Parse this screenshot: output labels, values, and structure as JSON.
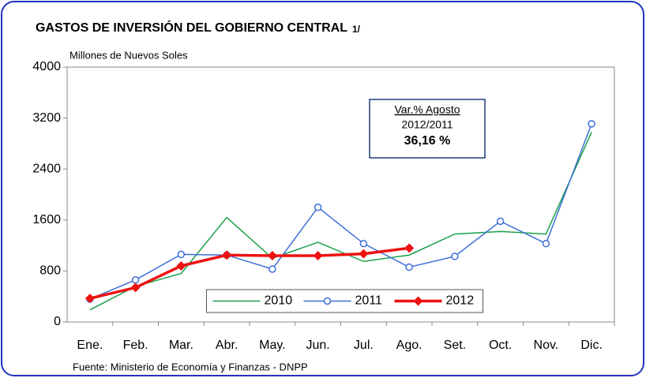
{
  "chart_data": {
    "type": "line",
    "title": "GASTOS DE INVERSIÓN DEL GOBIERNO CENTRAL",
    "title_note": "1/",
    "y_label": "Millones de Nuevos Soles",
    "source": "Fuente: Ministerio de Economía y Finanzas - DNPP",
    "categories": [
      "Ene.",
      "Feb.",
      "Mar.",
      "Abr.",
      "May.",
      "Jun.",
      "Jul.",
      "Ago.",
      "Set.",
      "Oct.",
      "Nov.",
      "Dic."
    ],
    "series": [
      {
        "name": "2010",
        "color": "#1aa04a",
        "marker": "none",
        "values": [
          190,
          560,
          760,
          1640,
          1000,
          1250,
          950,
          1050,
          1380,
          1420,
          1380,
          2980
        ]
      },
      {
        "name": "2011",
        "color": "#3c6fd8",
        "marker": "circle",
        "values": [
          360,
          660,
          1060,
          1050,
          830,
          1800,
          1230,
          860,
          1030,
          1580,
          1230,
          3110
        ]
      },
      {
        "name": "2012",
        "color": "#ee1111",
        "marker": "diamond",
        "values": [
          370,
          540,
          880,
          1050,
          1040,
          1040,
          1070,
          1160,
          null,
          null,
          null,
          null
        ]
      }
    ],
    "ylim": [
      0,
      4000
    ],
    "yticks": [
      0,
      800,
      1600,
      2400,
      3200,
      4000
    ],
    "grid": false,
    "legend_position": "lower center",
    "annotation": {
      "heading": "Var.% Agosto",
      "period": "2012/2011",
      "value_label": "36,16 %"
    }
  }
}
